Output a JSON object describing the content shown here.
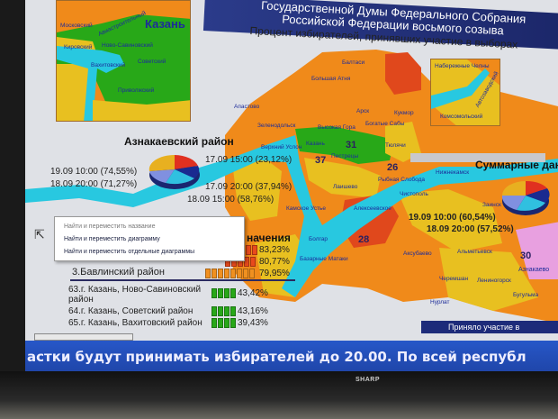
{
  "header": {
    "title_line1": "Государственной Думы Федерального Собрания",
    "title_line2": "Российской Федерации восьмого созыва",
    "subtitle": "Процент избирателей, принявших участие в выборах"
  },
  "colors": {
    "high": "#e84a1c",
    "orange": "#f08a1a",
    "yellow": "#e8c020",
    "green": "#28a818",
    "water": "#28c8e0",
    "pink": "#e8a0e0",
    "banner": "#1b2668",
    "ticker": "#2757c8"
  },
  "inset_kazan": {
    "city": "Казань",
    "districts": [
      "Московский",
      "Авиастроительный",
      "Кировский",
      "Ново-Савиновский",
      "Вахитовский",
      "Советский",
      "Приволжский"
    ]
  },
  "inset_right": {
    "districts": [
      "Набережные Челны",
      "Автозаводский",
      "Комсомольский"
    ]
  },
  "map": {
    "labels": [
      "Большая Атня",
      "Арск",
      "Кукмор",
      "Зеленодольск",
      "Высокая Гора",
      "Богатые Сабы",
      "Верхний Услон",
      "Казань",
      "Пестрецы",
      "Тюлячи",
      "Лаишево",
      "Рыбная Слобода",
      "Камское Устье",
      "Алексеевское",
      "Нижнекамск",
      "Чистополь",
      "Заинск",
      "Альметьевск",
      "Лениногорск",
      "Бугульма",
      "Азнакаево",
      "Аксубаево",
      "Черемшан",
      "Нурлат",
      "Базарные Матаки",
      "Болгар",
      "Апастово",
      "Балтаси"
    ],
    "numbers": [
      "37",
      "31",
      "26",
      "28",
      "30"
    ]
  },
  "pie_left": {
    "title": "Азнакаевский район",
    "labels": [
      "17.09 15:00 (23,12%)",
      "17.09 20:00 (37,94%)",
      "18.09 15:00 (58,76%)",
      "18.09 20:00 (71,27%)",
      "19.09 10:00 (74,55%)"
    ],
    "values": [
      23.12,
      37.94,
      58.76,
      71.27,
      74.55
    ]
  },
  "pie_summary": {
    "title": "Суммарные данные",
    "labels": [
      "19.09 10:00 (60,54%)",
      "18.09 20:00 (57,52%)"
    ]
  },
  "context_menu": {
    "items": [
      "Найти и переместить название",
      "Найти и переместить диаграмму",
      "Найти и переместить отдельные диаграммы"
    ]
  },
  "ranking": {
    "header": "начения",
    "top": [
      {
        "name": "",
        "value": "83,23%"
      },
      {
        "name": "",
        "value": "80,77%"
      },
      {
        "name": "3.Бавлинский район",
        "value": "79,95%"
      }
    ],
    "bottom": [
      {
        "name": "63.г. Казань, Ново-Савиновский район",
        "value": "43,42%"
      },
      {
        "name": "64.г. Казань, Советский район",
        "value": "43,16%"
      },
      {
        "name": "65.г. Казань, Вахитовский район",
        "value": "39,43%"
      }
    ]
  },
  "legend": {
    "title": "Приняло участие в"
  },
  "ticker": {
    "text": "астки будут принимать избирателей до 20.00. По всей республ"
  },
  "tv": {
    "brand": "SHARP"
  }
}
